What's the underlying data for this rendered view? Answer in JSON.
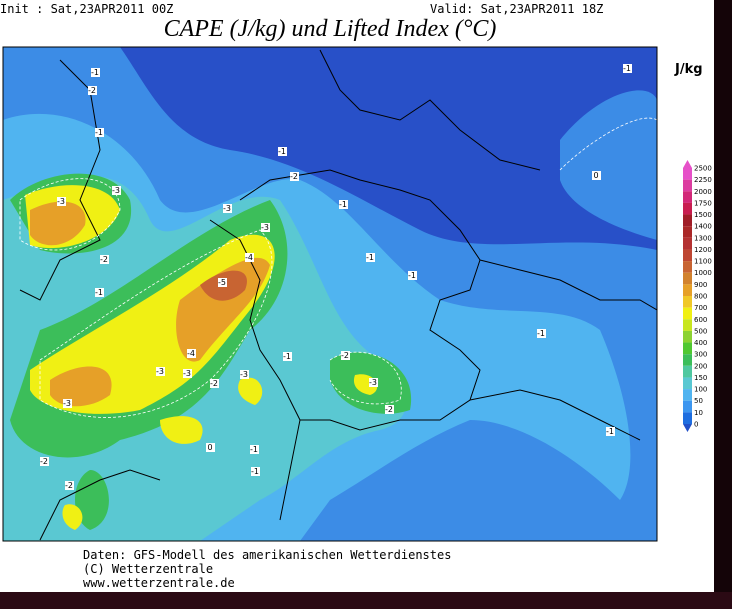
{
  "header": {
    "init": "Init : Sat,23APR2011 00Z",
    "valid": "Valid: Sat,23APR2011 18Z",
    "title": "CAPE (J/kg) und Lifted Index (°C)"
  },
  "colorbar": {
    "unit": "J/kg",
    "labels": [
      "2500",
      "2250",
      "2000",
      "1750",
      "1500",
      "1400",
      "1300",
      "1200",
      "1100",
      "1000",
      "900",
      "800",
      "700",
      "600",
      "500",
      "400",
      "300",
      "200",
      "150",
      "100",
      "50",
      "10",
      "0"
    ],
    "colors": [
      "#e650c8",
      "#dc3ca0",
      "#d22878",
      "#c81e50",
      "#a01e28",
      "#aa2828",
      "#b43232",
      "#be4632",
      "#c86432",
      "#d2822d",
      "#e6a028",
      "#f0c828",
      "#f0f014",
      "#c8e61e",
      "#8cd232",
      "#50c832",
      "#3cbe5a",
      "#50c8a0",
      "#5ac8d2",
      "#50b4f0",
      "#3c96f0",
      "#1e6ee0",
      "#2050c8"
    ]
  },
  "contour_labels": [
    "-1",
    "-2",
    "-1",
    "-3",
    "-3",
    "-2",
    "-1",
    "-3",
    "-2",
    "-3",
    "-4",
    "-5",
    "-4",
    "-3",
    "-3",
    "-2",
    "-3",
    "-3",
    "-2",
    "-2",
    "-3",
    "-2",
    "-2",
    "-1",
    "-1",
    "-1",
    "-1",
    "-1",
    "0",
    "-1",
    "-1",
    "-1",
    "-1",
    "-1",
    "0"
  ],
  "footer": {
    "line1": "Daten: GFS-Modell des amerikanischen Wetterdienstes",
    "line2": "(C) Wetterzentrale",
    "line3": "www.wetterzentrale.de"
  }
}
